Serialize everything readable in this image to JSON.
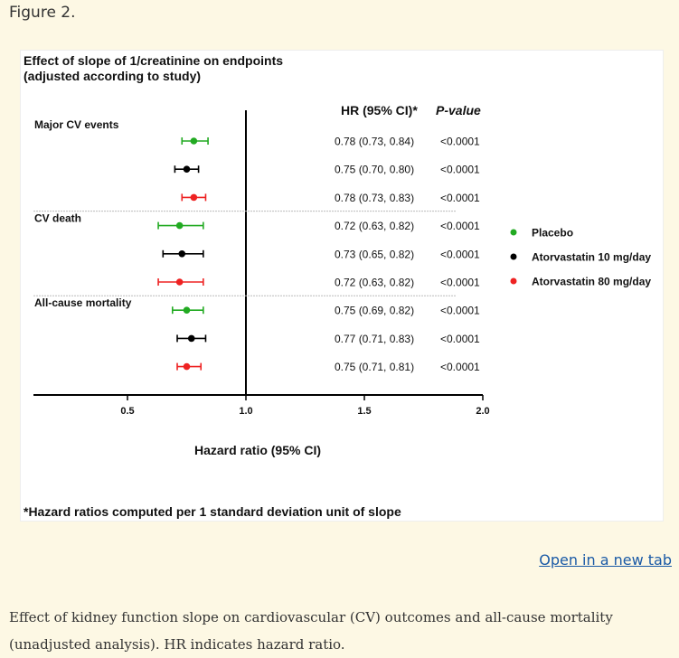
{
  "page": {
    "figure_label": "Figure 2.",
    "open_link": "Open in a new tab",
    "caption": "Effect of kidney function slope on cardiovascular (CV) outcomes and all-cause mortality (unadjusted analysis). HR indicates hazard ratio."
  },
  "chart_data": {
    "type": "scatter",
    "title_line1": "Effect of slope of 1/creatinine on endpoints",
    "title_line2": "(adjusted according to study)",
    "xlabel": "Hazard ratio (95% CI)",
    "xlim": [
      0.25,
      2.0
    ],
    "x_ticks": [
      "0.5",
      "1.0",
      "1.5",
      "2.0"
    ],
    "x_tick_values": [
      0.5,
      1.0,
      1.5,
      2.0
    ],
    "reference_line": 1.0,
    "column_headers": {
      "hr": "HR (95% CI)*",
      "p": "P-value"
    },
    "footnote": "*Hazard ratios computed per 1 standard deviation unit of slope",
    "legend_position": "right",
    "series": [
      {
        "name": "Placebo",
        "color": "#22aa22"
      },
      {
        "name": "Atorvastatin 10 mg/day",
        "color": "#000000"
      },
      {
        "name": "Atorvastatin 80 mg/day",
        "color": "#ee2222"
      }
    ],
    "groups": [
      {
        "label": "Major CV events",
        "rows": [
          {
            "series": 0,
            "hr": 0.78,
            "lo": 0.73,
            "hi": 0.84,
            "hr_text": "0.78 (0.73, 0.84)",
            "p": "<0.0001"
          },
          {
            "series": 1,
            "hr": 0.75,
            "lo": 0.7,
            "hi": 0.8,
            "hr_text": "0.75 (0.70, 0.80)",
            "p": "<0.0001"
          },
          {
            "series": 2,
            "hr": 0.78,
            "lo": 0.73,
            "hi": 0.83,
            "hr_text": "0.78 (0.73, 0.83)",
            "p": "<0.0001"
          }
        ]
      },
      {
        "label": "CV death",
        "rows": [
          {
            "series": 0,
            "hr": 0.72,
            "lo": 0.63,
            "hi": 0.82,
            "hr_text": "0.72 (0.63, 0.82)",
            "p": "<0.0001"
          },
          {
            "series": 1,
            "hr": 0.73,
            "lo": 0.65,
            "hi": 0.82,
            "hr_text": "0.73 (0.65, 0.82)",
            "p": "<0.0001"
          },
          {
            "series": 2,
            "hr": 0.72,
            "lo": 0.63,
            "hi": 0.82,
            "hr_text": "0.72 (0.63, 0.82)",
            "p": "<0.0001"
          }
        ]
      },
      {
        "label": "All-cause mortality",
        "rows": [
          {
            "series": 0,
            "hr": 0.75,
            "lo": 0.69,
            "hi": 0.82,
            "hr_text": "0.75 (0.69, 0.82)",
            "p": "<0.0001"
          },
          {
            "series": 1,
            "hr": 0.77,
            "lo": 0.71,
            "hi": 0.83,
            "hr_text": "0.77 (0.71, 0.83)",
            "p": "<0.0001"
          },
          {
            "series": 2,
            "hr": 0.75,
            "lo": 0.71,
            "hi": 0.81,
            "hr_text": "0.75 (0.71, 0.81)",
            "p": "<0.0001"
          }
        ]
      }
    ]
  }
}
